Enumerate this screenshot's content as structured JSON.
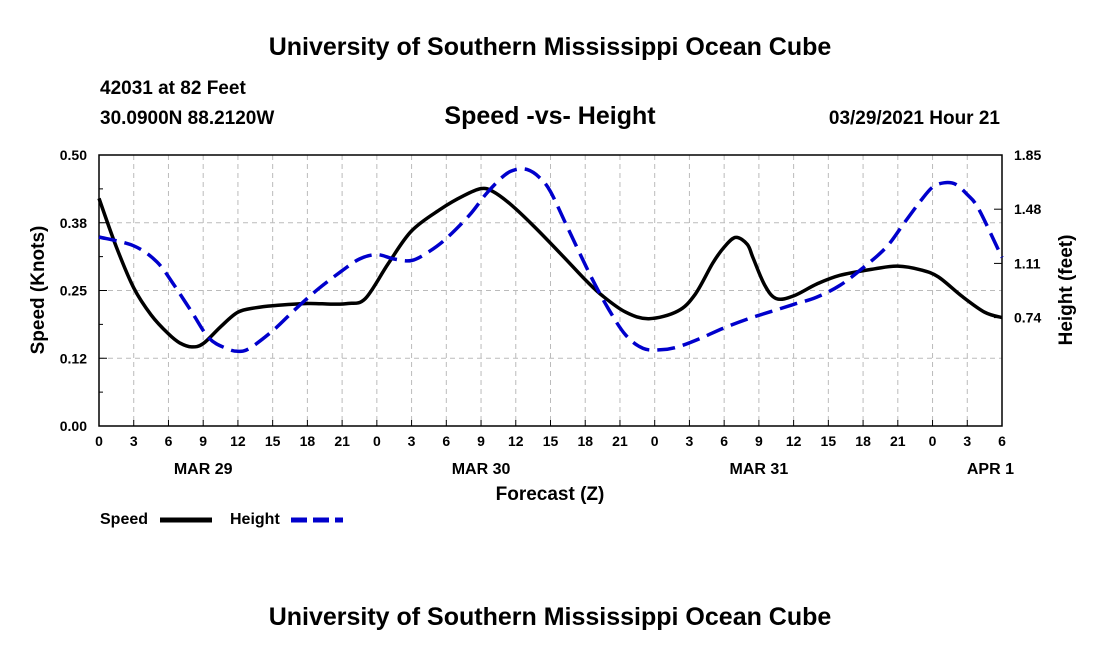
{
  "header": {
    "title_top": "University of Southern Mississippi Ocean Cube",
    "title_bottom": "University of Southern Mississippi Ocean Cube",
    "station": "42031 at 82 Feet",
    "location": "30.0900N  88.2120W",
    "datetime": "03/29/2021 Hour 21"
  },
  "colors": {
    "speed": "#000000",
    "height": "#0000cc",
    "grid": "#bbbbbb"
  },
  "chart_data": {
    "type": "line",
    "title": "Speed -vs- Height",
    "xlabel": "Forecast (Z)",
    "ylabel_left": "Speed (Knots)",
    "ylabel_right": "Height (feet)",
    "x_range": [
      0,
      78
    ],
    "x_tick_hours": [
      0,
      3,
      6,
      9,
      12,
      15,
      18,
      21,
      24,
      27,
      30,
      33,
      36,
      39,
      42,
      45,
      48,
      51,
      54,
      57,
      60,
      63,
      66,
      69,
      72,
      75,
      78
    ],
    "x_tick_labels": [
      "0",
      "3",
      "6",
      "9",
      "12",
      "15",
      "18",
      "21",
      "0",
      "3",
      "6",
      "9",
      "12",
      "15",
      "18",
      "21",
      "0",
      "3",
      "6",
      "9",
      "12",
      "15",
      "18",
      "21",
      "0",
      "3",
      "6"
    ],
    "date_labels": [
      {
        "hour": 9,
        "label": "MAR 29"
      },
      {
        "hour": 33,
        "label": "MAR 30"
      },
      {
        "hour": 57,
        "label": "MAR 31"
      },
      {
        "hour": 77,
        "label": "APR 1"
      }
    ],
    "y_left": {
      "range": [
        0,
        0.5
      ],
      "ticks": [
        0,
        0.125,
        0.25,
        0.375,
        0.5
      ],
      "tick_labels": [
        "0.00",
        "0.12",
        "0.25",
        "0.38",
        "0.50"
      ]
    },
    "y_right": {
      "range": [
        0,
        1.85
      ],
      "ticks": [
        0.74,
        1.11,
        1.48,
        1.85
      ],
      "tick_labels": [
        "0.74",
        "1.11",
        "1.48",
        "1.85"
      ]
    },
    "grid": true,
    "series": [
      {
        "name": "Speed",
        "axis": "left",
        "style": "solid",
        "x": [
          0,
          1.5,
          3,
          4.5,
          6,
          7,
          8,
          9,
          10.5,
          12,
          13.5,
          15,
          18,
          20,
          21.5,
          23,
          25,
          27,
          29.5,
          31.5,
          33,
          34,
          35.5,
          37.5,
          40,
          42,
          43.5,
          45.5,
          47.5,
          50,
          51.5,
          53,
          54,
          55,
          56,
          56.5,
          57.5,
          58.5,
          60,
          62,
          64,
          67,
          69,
          71,
          72.5,
          74.5,
          76.5,
          78
        ],
        "y": [
          0.42,
          0.33,
          0.255,
          0.205,
          0.17,
          0.153,
          0.146,
          0.152,
          0.183,
          0.21,
          0.218,
          0.222,
          0.226,
          0.225,
          0.226,
          0.235,
          0.3,
          0.36,
          0.4,
          0.425,
          0.438,
          0.433,
          0.41,
          0.37,
          0.315,
          0.27,
          0.24,
          0.21,
          0.198,
          0.212,
          0.243,
          0.3,
          0.33,
          0.348,
          0.335,
          0.31,
          0.26,
          0.235,
          0.24,
          0.262,
          0.278,
          0.29,
          0.295,
          0.288,
          0.275,
          0.24,
          0.21,
          0.2
        ]
      },
      {
        "name": "Height",
        "axis": "right",
        "style": "dashed",
        "x": [
          0,
          3,
          5,
          6.5,
          8,
          9.5,
          11,
          12,
          13,
          15,
          17,
          19,
          21,
          22.5,
          24,
          25.5,
          27,
          28.5,
          30,
          32,
          33.5,
          35,
          36,
          37,
          38,
          39,
          40.5,
          42.5,
          44,
          45.5,
          47,
          48.5,
          50,
          52,
          54,
          56,
          58,
          60,
          62,
          64,
          66,
          68,
          69.5,
          71,
          72,
          73,
          74,
          75,
          76,
          78
        ],
        "y": [
          1.29,
          1.23,
          1.12,
          0.96,
          0.78,
          0.6,
          0.53,
          0.51,
          0.53,
          0.65,
          0.8,
          0.94,
          1.06,
          1.14,
          1.17,
          1.14,
          1.13,
          1.19,
          1.28,
          1.44,
          1.59,
          1.71,
          1.75,
          1.75,
          1.7,
          1.6,
          1.35,
          1.02,
          0.8,
          0.62,
          0.53,
          0.52,
          0.54,
          0.6,
          0.67,
          0.73,
          0.78,
          0.83,
          0.88,
          0.96,
          1.08,
          1.22,
          1.38,
          1.54,
          1.63,
          1.66,
          1.65,
          1.58,
          1.48,
          1.15
        ]
      }
    ]
  },
  "legend": {
    "speed_label": "Speed",
    "height_label": "Height"
  }
}
